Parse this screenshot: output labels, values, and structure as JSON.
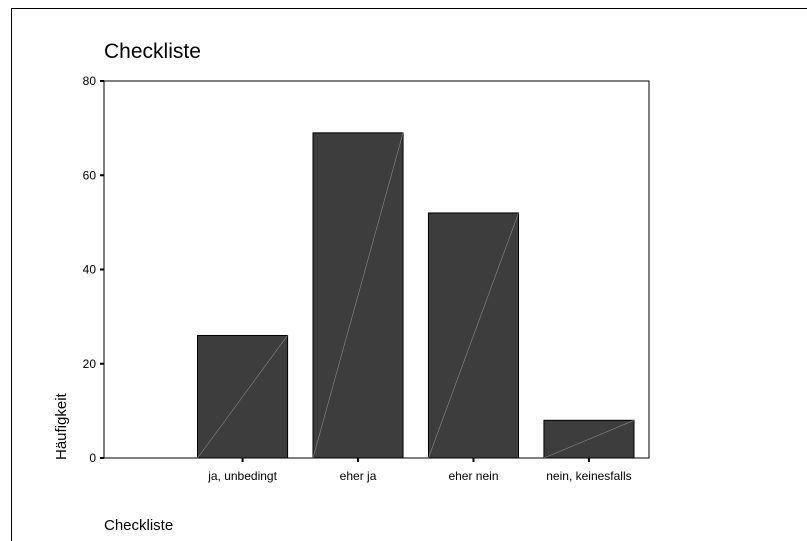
{
  "chart_data": {
    "type": "bar",
    "title": "Checkliste",
    "xlabel": "Checkliste",
    "ylabel": "Häufigkeit",
    "categories": [
      "ja, unbedingt",
      "eher ja",
      "eher nein",
      "nein, keinesfalls"
    ],
    "values": [
      26,
      69,
      52,
      8
    ],
    "ylim": [
      0,
      80
    ],
    "yticks": [
      0,
      20,
      40,
      60,
      80
    ],
    "grid": false,
    "bar_color": "#3d3d3d"
  }
}
